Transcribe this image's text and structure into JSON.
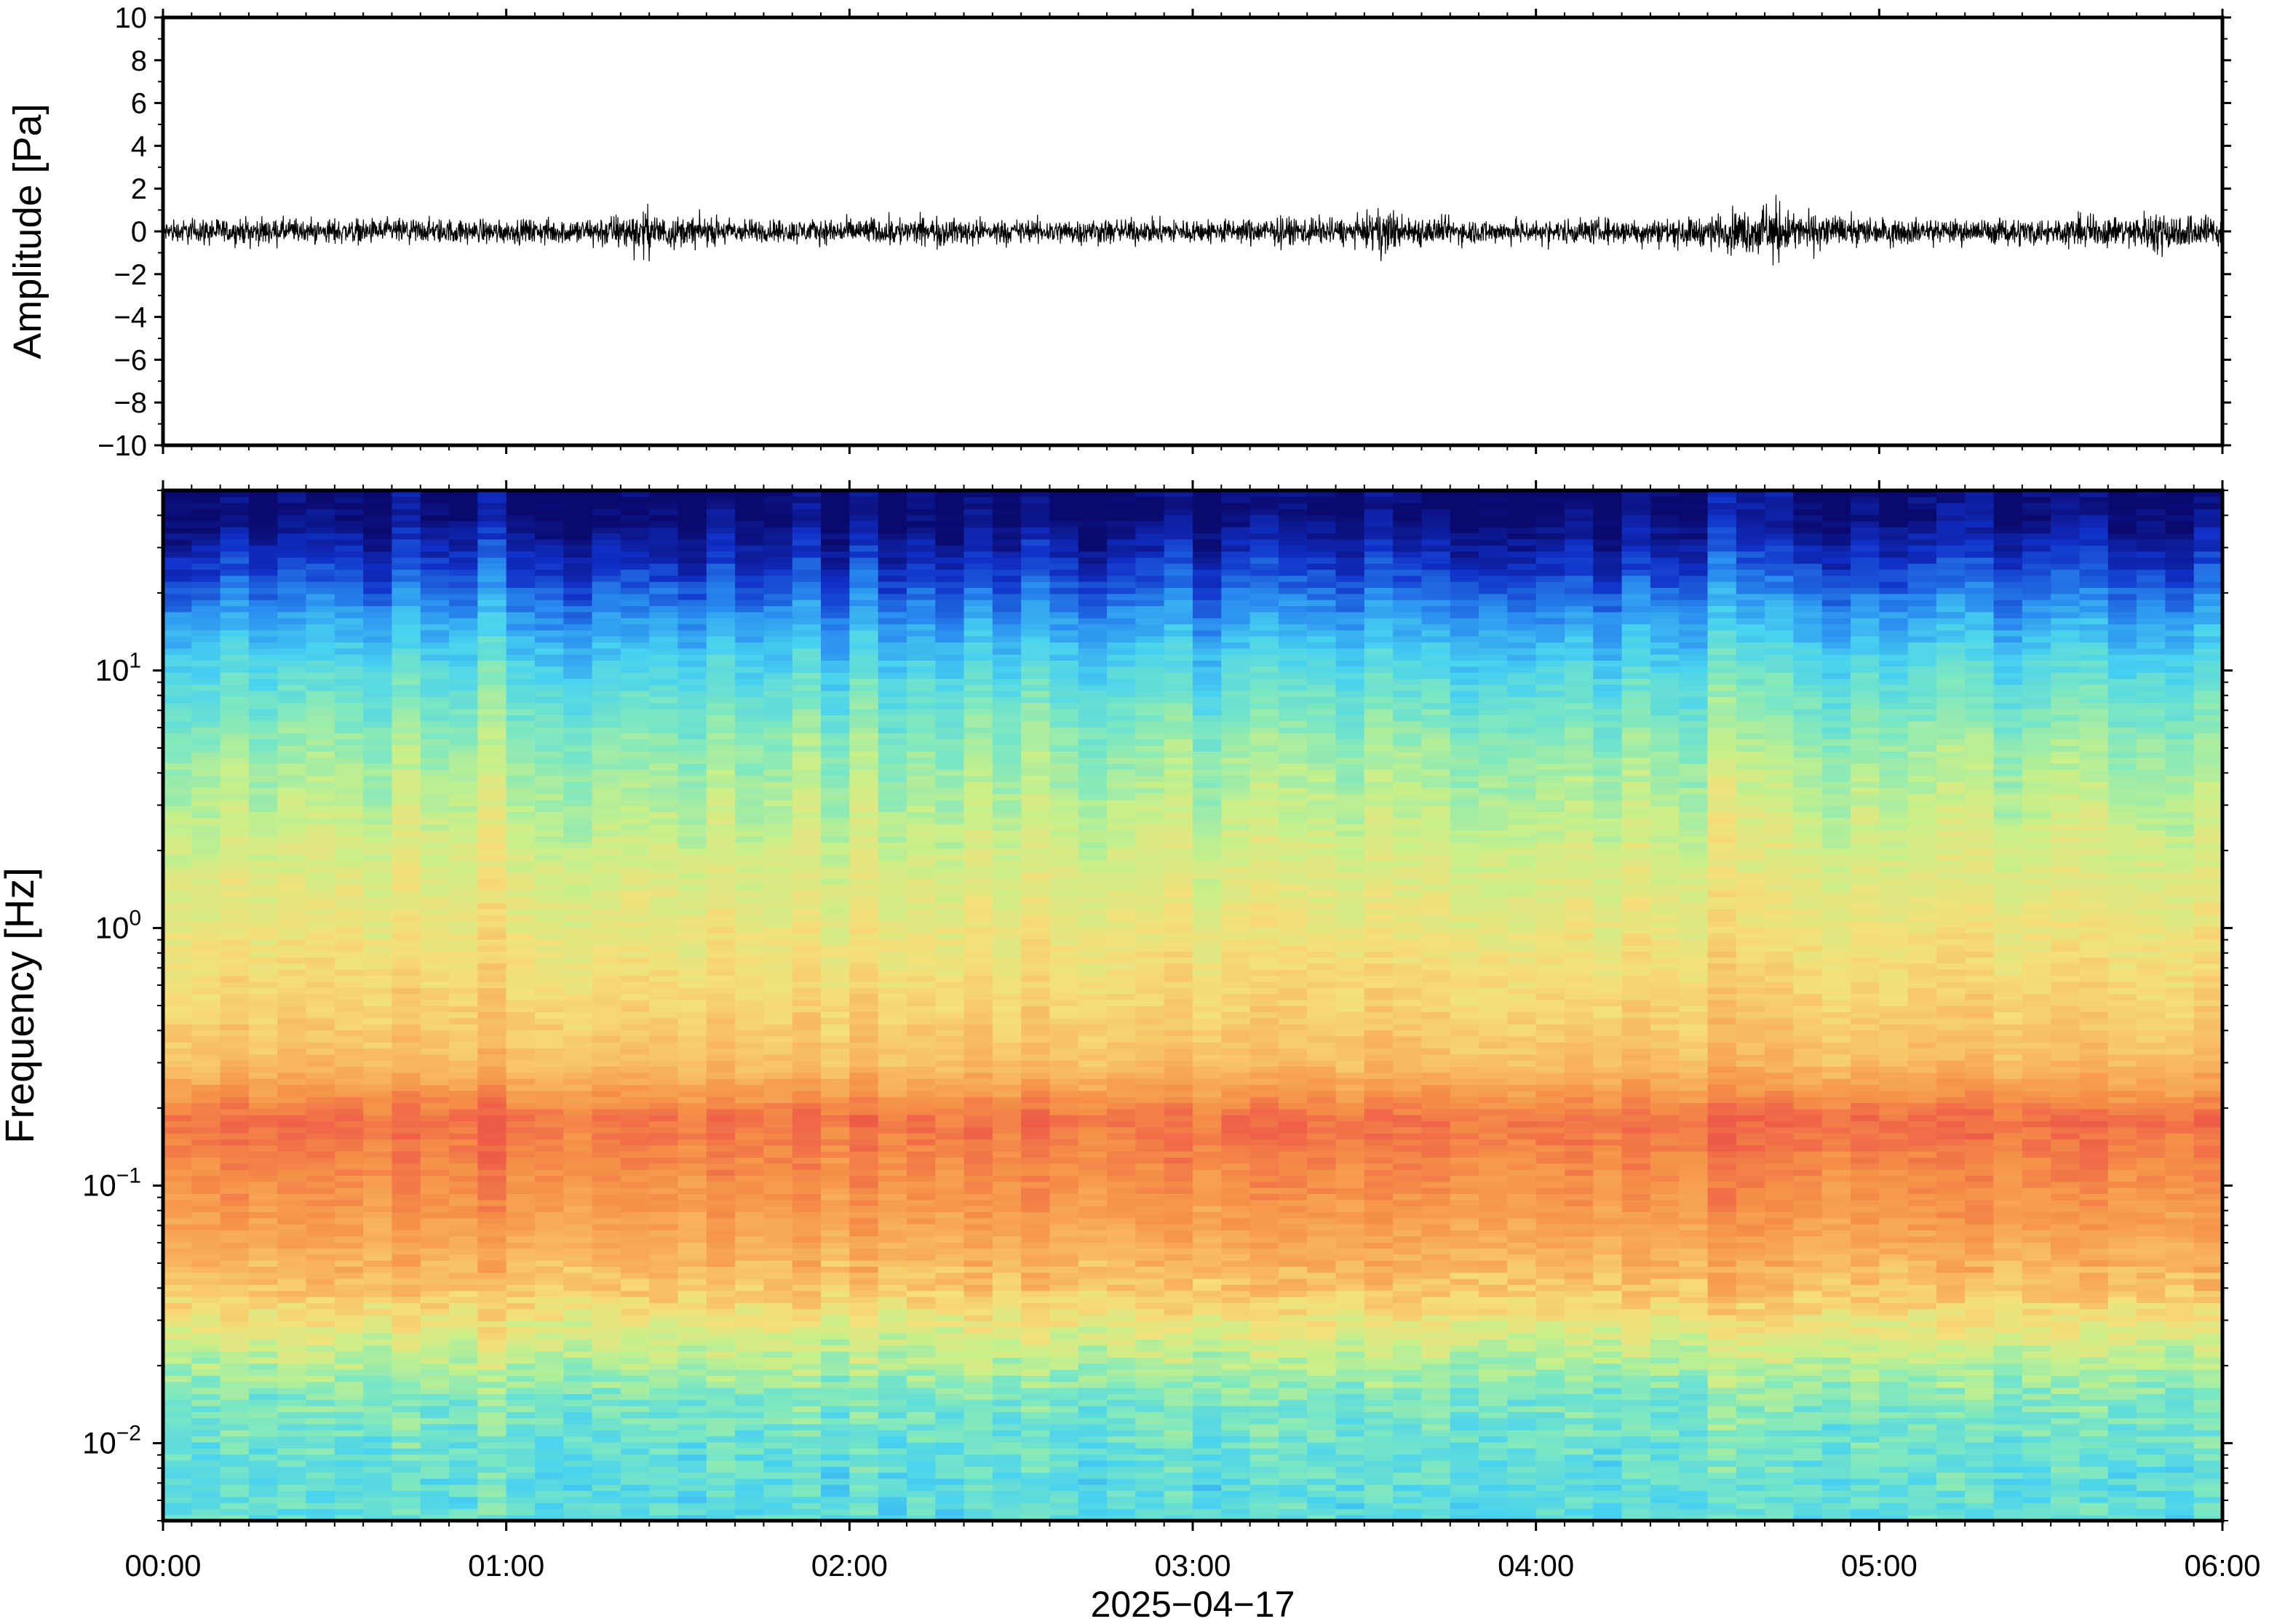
{
  "chart_data": [
    {
      "type": "line",
      "ylabel": "Amplitude [Pa]",
      "xlabel": "",
      "ylim": [
        -10,
        10
      ],
      "yticks": [
        "10",
        "8",
        "6",
        "4",
        "2",
        "0",
        "−2",
        "−4",
        "−6",
        "−8",
        "−10"
      ],
      "ytick_values": [
        10,
        8,
        6,
        4,
        2,
        0,
        -2,
        -4,
        -6,
        -8,
        -10
      ],
      "xlim": [
        "00:00",
        "06:00"
      ],
      "line_color": "#000000",
      "grid": false,
      "series": [
        {
          "time_h": [
            0.0,
            0.25,
            0.5,
            0.75,
            1.0,
            1.25,
            1.42,
            1.5,
            1.75,
            2.0,
            2.25,
            2.5,
            2.75,
            3.0,
            3.25,
            3.5,
            3.56,
            3.6,
            3.75,
            4.0,
            4.25,
            4.5,
            4.7,
            4.75,
            5.0,
            5.25,
            5.5,
            5.75,
            5.8,
            6.0
          ],
          "envelope_pa": [
            1.0,
            1.1,
            1.0,
            1.1,
            1.0,
            1.2,
            1.8,
            1.3,
            1.0,
            1.1,
            1.2,
            1.0,
            1.1,
            1.0,
            1.2,
            1.1,
            2.3,
            1.4,
            1.1,
            1.0,
            1.1,
            1.3,
            2.6,
            1.6,
            1.1,
            1.0,
            1.2,
            1.4,
            1.9,
            1.2
          ]
        }
      ]
    },
    {
      "type": "heatmap",
      "ylabel": "Frequency [Hz]",
      "xlabel": "2025−04−17",
      "y_scale": "log",
      "ylim_hz": [
        0.005,
        50
      ],
      "yticks": [
        {
          "base": "10",
          "exp": "1",
          "value": 10
        },
        {
          "base": "10",
          "exp": "0",
          "value": 1
        },
        {
          "base": "10",
          "exp": "−1",
          "value": 0.1
        },
        {
          "base": "10",
          "exp": "−2",
          "value": 0.01
        }
      ],
      "xticks": [
        "00:00",
        "01:00",
        "02:00",
        "03:00",
        "04:00",
        "05:00",
        "06:00"
      ],
      "colormap": "rainbow (dark blue = low, red = high)",
      "colormap_stops": [
        "#0a0a6e",
        "#1030c8",
        "#2a8ef0",
        "#48d2f0",
        "#7ee8c0",
        "#c8f08a",
        "#f5e07a",
        "#f8b860",
        "#f59048",
        "#ee5a48"
      ],
      "band_profile": [
        {
          "freq_hz": 40,
          "level": 0.0
        },
        {
          "freq_hz": 25,
          "level": 0.12
        },
        {
          "freq_hz": 15,
          "level": 0.26
        },
        {
          "freq_hz": 10,
          "level": 0.36
        },
        {
          "freq_hz": 5,
          "level": 0.48
        },
        {
          "freq_hz": 2,
          "level": 0.58
        },
        {
          "freq_hz": 1,
          "level": 0.64
        },
        {
          "freq_hz": 0.5,
          "level": 0.7
        },
        {
          "freq_hz": 0.3,
          "level": 0.76
        },
        {
          "freq_hz": 0.18,
          "level": 0.95
        },
        {
          "freq_hz": 0.12,
          "level": 0.9
        },
        {
          "freq_hz": 0.07,
          "level": 0.84
        },
        {
          "freq_hz": 0.04,
          "level": 0.74
        },
        {
          "freq_hz": 0.025,
          "level": 0.58
        },
        {
          "freq_hz": 0.015,
          "level": 0.44
        },
        {
          "freq_hz": 0.007,
          "level": 0.38
        }
      ],
      "grid": false
    }
  ]
}
